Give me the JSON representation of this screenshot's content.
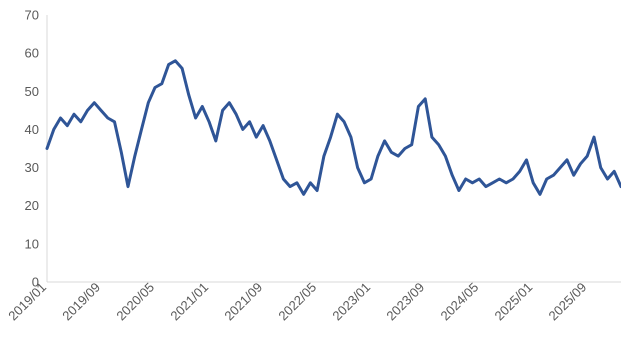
{
  "chart_data": {
    "type": "line",
    "title": "",
    "xlabel": "",
    "ylabel": "",
    "ylim": [
      0,
      70
    ],
    "yticks": [
      0,
      10,
      20,
      30,
      40,
      50,
      60,
      70
    ],
    "xlim": [
      "2019/01",
      "2026/02"
    ],
    "xticks": [
      "2019/01",
      "2019/09",
      "2020/05",
      "2021/01",
      "2021/09",
      "2022/05",
      "2023/01",
      "2023/09",
      "2024/05",
      "2025/01",
      "2025/09"
    ],
    "grid": false,
    "legend": "none",
    "color": "#2f5597",
    "series": [
      {
        "x": [
          "2019/01",
          "2019/02",
          "2019/03",
          "2019/04",
          "2019/05",
          "2019/06",
          "2019/07",
          "2019/08",
          "2019/09",
          "2019/10",
          "2019/11",
          "2019/12",
          "2020/01",
          "2020/02",
          "2020/03",
          "2020/04",
          "2020/05",
          "2020/06",
          "2020/07",
          "2020/08",
          "2020/09",
          "2020/10",
          "2020/11",
          "2020/12",
          "2021/01",
          "2021/02",
          "2021/03",
          "2021/04",
          "2021/05",
          "2021/06",
          "2021/07",
          "2021/08",
          "2021/09",
          "2021/10",
          "2021/11",
          "2021/12",
          "2022/01",
          "2022/02",
          "2022/03",
          "2022/04",
          "2022/05",
          "2022/06",
          "2022/07",
          "2022/08",
          "2022/09",
          "2022/10",
          "2022/11",
          "2022/12",
          "2023/01",
          "2023/02",
          "2023/03",
          "2023/04",
          "2023/05",
          "2023/06",
          "2023/07",
          "2023/08",
          "2023/09",
          "2023/10",
          "2023/11",
          "2023/12",
          "2024/01",
          "2024/02",
          "2024/03",
          "2024/04",
          "2024/05",
          "2024/06",
          "2024/07",
          "2024/08",
          "2024/09",
          "2024/10",
          "2024/11",
          "2024/12",
          "2025/01",
          "2025/02",
          "2025/03",
          "2025/04",
          "2025/05",
          "2025/06",
          "2025/07",
          "2025/08",
          "2025/09",
          "2025/10",
          "2025/11",
          "2025/12",
          "2026/01",
          "2026/02"
        ],
        "values": [
          35,
          40,
          43,
          41,
          44,
          42,
          45,
          47,
          45,
          43,
          42,
          34,
          25,
          33,
          40,
          47,
          51,
          52,
          57,
          58,
          56,
          49,
          43,
          46,
          42,
          37,
          45,
          47,
          44,
          40,
          42,
          38,
          41,
          37,
          32,
          27,
          25,
          26,
          23,
          26,
          24,
          33,
          38,
          44,
          42,
          38,
          30,
          26,
          27,
          33,
          37,
          34,
          33,
          35,
          36,
          46,
          48,
          38,
          36,
          33,
          28,
          24,
          27,
          26,
          27,
          25,
          26,
          27,
          26,
          27,
          29,
          32,
          26,
          23,
          27,
          28,
          30,
          32,
          28,
          31,
          33,
          38,
          30,
          27,
          29,
          25
        ]
      }
    ]
  }
}
